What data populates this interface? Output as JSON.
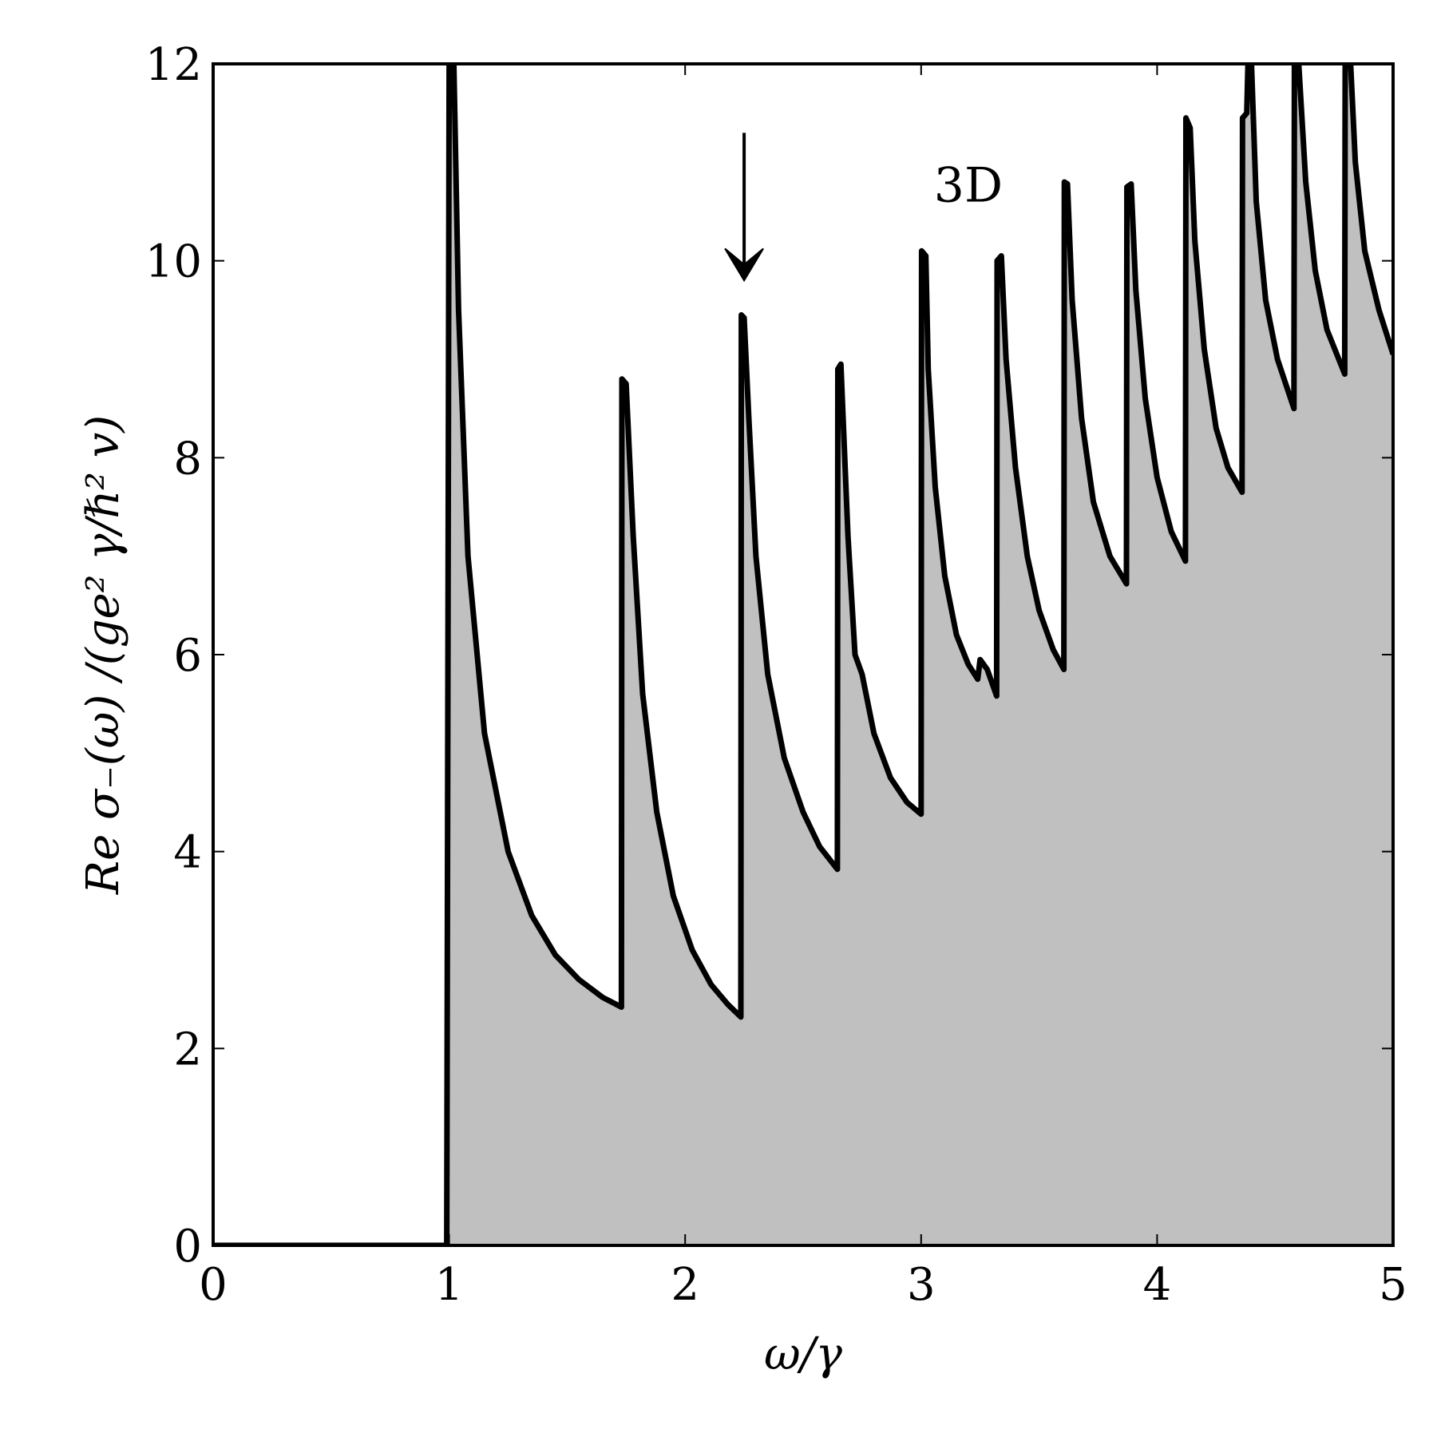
{
  "chart_data": {
    "type": "line",
    "title": "",
    "xlabel": "ω/γ",
    "ylabel": "Re σ₋(ω) /(ge² γ/ℏ² v)",
    "xlim": [
      0,
      5
    ],
    "ylim": [
      0,
      12
    ],
    "x_ticks": [
      "0",
      "1",
      "2",
      "3",
      "4",
      "5"
    ],
    "y_ticks": [
      "0",
      "2",
      "4",
      "6",
      "8",
      "10",
      "12"
    ],
    "grid": false,
    "legend": "none",
    "annotations": [
      {
        "text": "3D",
        "x": 3.2,
        "y": 10.6
      },
      {
        "text": "",
        "type": "arrow",
        "x": 2.25,
        "y_from": 11.3,
        "y_to": 9.8
      }
    ],
    "fill_color": "#c0c0c0",
    "line_color": "#000000",
    "series": [
      {
        "points": [
          [
            0,
            0
          ],
          [
            0.99,
            0
          ],
          [
            1.0,
            12
          ],
          [
            1.02,
            12
          ],
          [
            1.04,
            9.5
          ],
          [
            1.08,
            7.0
          ],
          [
            1.15,
            5.2
          ],
          [
            1.25,
            4.0
          ],
          [
            1.35,
            3.35
          ],
          [
            1.45,
            2.95
          ],
          [
            1.55,
            2.7
          ],
          [
            1.65,
            2.52
          ],
          [
            1.73,
            2.42
          ],
          [
            1.732,
            8.8
          ],
          [
            1.75,
            8.75
          ],
          [
            1.78,
            7.2
          ],
          [
            1.82,
            5.6
          ],
          [
            1.88,
            4.4
          ],
          [
            1.95,
            3.55
          ],
          [
            2.03,
            3.0
          ],
          [
            2.11,
            2.65
          ],
          [
            2.18,
            2.45
          ],
          [
            2.236,
            2.32
          ],
          [
            2.238,
            9.45
          ],
          [
            2.25,
            9.42
          ],
          [
            2.27,
            8.4
          ],
          [
            2.3,
            7.0
          ],
          [
            2.35,
            5.8
          ],
          [
            2.42,
            4.95
          ],
          [
            2.5,
            4.4
          ],
          [
            2.57,
            4.05
          ],
          [
            2.645,
            3.82
          ],
          [
            2.647,
            8.9
          ],
          [
            2.66,
            8.95
          ],
          [
            2.69,
            7.2
          ],
          [
            2.72,
            6.0
          ],
          [
            2.75,
            5.8
          ],
          [
            2.8,
            5.2
          ],
          [
            2.87,
            4.75
          ],
          [
            2.94,
            4.5
          ],
          [
            3.0,
            4.38
          ],
          [
            3.002,
            10.1
          ],
          [
            3.02,
            10.05
          ],
          [
            3.03,
            8.9
          ],
          [
            3.06,
            7.7
          ],
          [
            3.1,
            6.8
          ],
          [
            3.15,
            6.2
          ],
          [
            3.2,
            5.9
          ],
          [
            3.24,
            5.75
          ],
          [
            3.25,
            5.95
          ],
          [
            3.28,
            5.85
          ],
          [
            3.32,
            5.58
          ],
          [
            3.322,
            10.0
          ],
          [
            3.34,
            10.05
          ],
          [
            3.36,
            9.0
          ],
          [
            3.4,
            7.9
          ],
          [
            3.45,
            7.0
          ],
          [
            3.5,
            6.45
          ],
          [
            3.56,
            6.05
          ],
          [
            3.605,
            5.85
          ],
          [
            3.607,
            10.8
          ],
          [
            3.62,
            10.78
          ],
          [
            3.64,
            9.6
          ],
          [
            3.68,
            8.4
          ],
          [
            3.73,
            7.55
          ],
          [
            3.8,
            7.0
          ],
          [
            3.87,
            6.72
          ],
          [
            3.872,
            10.75
          ],
          [
            3.89,
            10.78
          ],
          [
            3.91,
            9.7
          ],
          [
            3.95,
            8.6
          ],
          [
            4.0,
            7.8
          ],
          [
            4.06,
            7.25
          ],
          [
            4.12,
            6.95
          ],
          [
            4.122,
            11.45
          ],
          [
            4.14,
            11.35
          ],
          [
            4.16,
            10.2
          ],
          [
            4.2,
            9.1
          ],
          [
            4.25,
            8.3
          ],
          [
            4.3,
            7.9
          ],
          [
            4.36,
            7.65
          ],
          [
            4.362,
            11.45
          ],
          [
            4.38,
            11.5
          ],
          [
            4.385,
            12
          ],
          [
            4.4,
            12
          ],
          [
            4.42,
            10.6
          ],
          [
            4.46,
            9.6
          ],
          [
            4.51,
            9.0
          ],
          [
            4.58,
            8.5
          ],
          [
            4.582,
            12
          ],
          [
            4.6,
            12
          ],
          [
            4.63,
            10.8
          ],
          [
            4.67,
            9.9
          ],
          [
            4.72,
            9.3
          ],
          [
            4.795,
            8.85
          ],
          [
            4.797,
            12
          ],
          [
            4.82,
            12
          ],
          [
            4.84,
            11.0
          ],
          [
            4.88,
            10.1
          ],
          [
            4.94,
            9.5
          ],
          [
            5.0,
            9.05
          ]
        ]
      }
    ]
  }
}
